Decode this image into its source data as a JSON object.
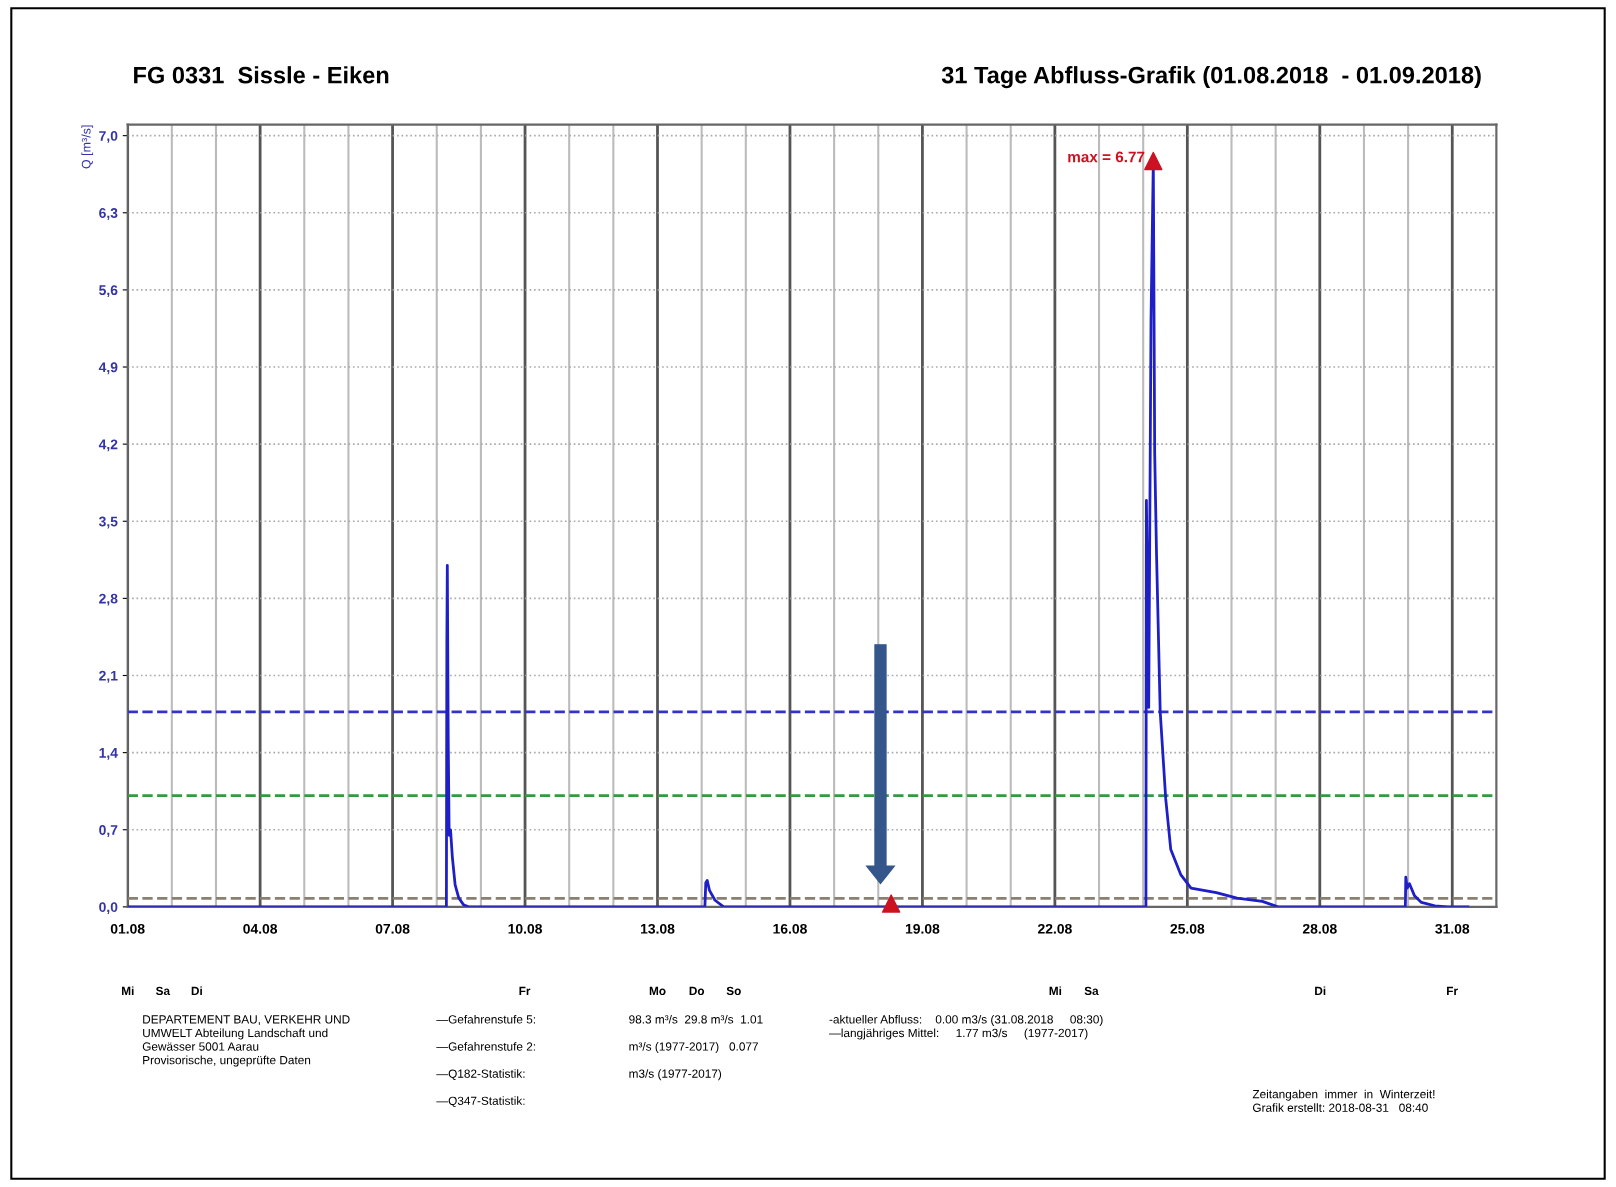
{
  "chart_data": {
    "type": "line",
    "title": "FG 0331  Sissle - Eiken",
    "subtitle": "31 Tage Abfluss-Grafik (01.08.2018  - 01.09.2018)",
    "ylabel": "Q [m³/s]",
    "xlim": [
      "2018-08-01",
      "2018-09-01"
    ],
    "xticks": [
      {
        "value": "2018-08-01",
        "label": "01.08"
      },
      {
        "value": "2018-08-02",
        "label": null
      },
      {
        "value": "2018-08-03",
        "label": null
      },
      {
        "value": "2018-08-04",
        "label": "04.08"
      },
      {
        "value": "2018-08-05",
        "label": null
      },
      {
        "value": "2018-08-06",
        "label": null
      },
      {
        "value": "2018-08-07",
        "label": "07.08"
      },
      {
        "value": "2018-08-08",
        "label": null
      },
      {
        "value": "2018-08-09",
        "label": null
      },
      {
        "value": "2018-08-10",
        "label": "10.08"
      },
      {
        "value": "2018-08-11",
        "label": null
      },
      {
        "value": "2018-08-12",
        "label": null
      },
      {
        "value": "2018-08-13",
        "label": "13.08"
      },
      {
        "value": "2018-08-14",
        "label": null
      },
      {
        "value": "2018-08-15",
        "label": null
      },
      {
        "value": "2018-08-16",
        "label": "16.08"
      },
      {
        "value": "2018-08-17",
        "label": null
      },
      {
        "value": "2018-08-18",
        "label": null
      },
      {
        "value": "2018-08-19",
        "label": "19.08"
      },
      {
        "value": "2018-08-20",
        "label": null
      },
      {
        "value": "2018-08-21",
        "label": null
      },
      {
        "value": "2018-08-22",
        "label": "22.08"
      },
      {
        "value": "2018-08-23",
        "label": null
      },
      {
        "value": "2018-08-24",
        "label": null
      },
      {
        "value": "2018-08-25",
        "label": "25.08"
      },
      {
        "value": "2018-08-26",
        "label": null
      },
      {
        "value": "2018-08-27",
        "label": null
      },
      {
        "value": "2018-08-28",
        "label": "28.08"
      },
      {
        "value": "2018-08-29",
        "label": null
      },
      {
        "value": "2018-08-30",
        "label": null
      },
      {
        "value": "2018-08-31",
        "label": "31.08"
      },
      {
        "value": "2018-09-01",
        "label": null
      }
    ],
    "ylim": [
      0,
      7.1
    ],
    "yticks": [
      {
        "value": 0,
        "label": "0,0"
      },
      {
        "value": 0.7,
        "label": "0,7"
      },
      {
        "value": 1.4,
        "label": "1,4"
      },
      {
        "value": 2.1,
        "label": "2,1"
      },
      {
        "value": 2.8,
        "label": "2,8"
      },
      {
        "value": 3.5,
        "label": "3,5"
      },
      {
        "value": 4.2,
        "label": "4,2"
      },
      {
        "value": 4.9,
        "label": "4,9"
      },
      {
        "value": 5.6,
        "label": "5,6"
      },
      {
        "value": 6.3,
        "label": "6,3"
      },
      {
        "value": 7.0,
        "label": "7,0"
      }
    ],
    "grid": true,
    "series": [
      {
        "color": "#1f1fc8",
        "x": [
          "2018-08-01T00:00",
          "2018-08-08T05:15",
          "2018-08-08T05:30",
          "2018-08-08T05:45",
          "2018-08-08T06:15",
          "2018-08-08T06:45",
          "2018-08-08T07:30",
          "2018-08-08T08:30",
          "2018-08-08T10:00",
          "2018-08-08T12:00",
          "2018-08-08T14:30",
          "2018-08-08T17:15",
          "2018-08-14T01:45",
          "2018-08-14T02:15",
          "2018-08-14T03:00",
          "2018-08-14T04:15",
          "2018-08-14T07:15",
          "2018-08-14T12:00",
          "2018-08-24T01:30",
          "2018-08-24T01:45",
          "2018-08-24T03:00",
          "2018-08-24T04:15",
          "2018-08-24T05:30",
          "2018-08-24T06:15",
          "2018-08-24T07:15",
          "2018-08-24T09:15",
          "2018-08-24T12:15",
          "2018-08-24T15:00",
          "2018-08-24T20:30",
          "2018-08-25T02:00",
          "2018-08-25T15:45",
          "2018-08-26T03:00",
          "2018-08-26T16:45",
          "2018-08-27T01:15",
          "2018-08-29T22:30",
          "2018-08-29T22:45",
          "2018-08-29T23:30",
          "2018-08-30T00:45",
          "2018-08-30T03:30",
          "2018-08-30T07:15",
          "2018-08-30T14:30",
          "2018-08-30T21:30",
          "2018-08-31T08:30"
        ],
        "values": [
          0,
          0,
          2.4,
          3.1,
          1.5,
          0.65,
          0.7,
          0.45,
          0.2,
          0.08,
          0.02,
          0,
          0,
          0.22,
          0.24,
          0.15,
          0.06,
          0,
          0,
          3.69,
          1.81,
          5.32,
          6.77,
          4.12,
          3.2,
          1.77,
          0.98,
          0.52,
          0.29,
          0.17,
          0.13,
          0.08,
          0.05,
          0,
          0,
          0.27,
          0.17,
          0.21,
          0.1,
          0.04,
          0.01,
          0,
          0
        ]
      },
      {
        "type": "scatter",
        "marker": "triangle",
        "color": "#cc1122",
        "x": [
          "2018-08-24T05:30",
          "2018-08-18T07:00"
        ],
        "values": [
          6.77,
          0.03
        ]
      }
    ],
    "ref_lines": [
      {
        "axis": "y",
        "value": 1.77,
        "color": "#3333cc",
        "line_style": "dashed"
      },
      {
        "axis": "y",
        "value": 1.01,
        "color": "#339944",
        "line_style": "dashed"
      },
      {
        "axis": "y",
        "value": 0.077,
        "color": "#8a8070",
        "line_style": "dashed"
      }
    ],
    "annotations": [
      {
        "text": "max = 6.77",
        "x": "2018-08-24T05:30",
        "y": 6.77
      },
      "Mi",
      "Sa",
      "Di",
      "Fr",
      "Mo",
      "Do",
      "So",
      "Mi",
      "Sa",
      "Di",
      "Fr",
      "DEPARTEMENT BAU, VERKEHR UND\nUMWELT Abteilung Landschaft und\nGewässer 5001 Aarau\nProvisorische, ungeprüfte Daten",
      "—Gefahrenstufe 5:\n\n—Gefahrenstufe 2:\n\n—Q182-Statistik:\n\n—Q347-Statistik:",
      "98.3 m³/s  29.8 m³/s  1.01\n\nm³/s (1977-2017)   0.077\n\nm3/s (1977-2017)",
      "-aktueller Abfluss:    0.00 m3/s (31.08.2018     08:30)\n—langjähriges Mittel:     1.77 m3/s     (1977-2017)",
      "Zeitangaben  immer  in  Winterzeit!\nGrafik erstellt: 2018-08-31   08:40"
    ]
  }
}
